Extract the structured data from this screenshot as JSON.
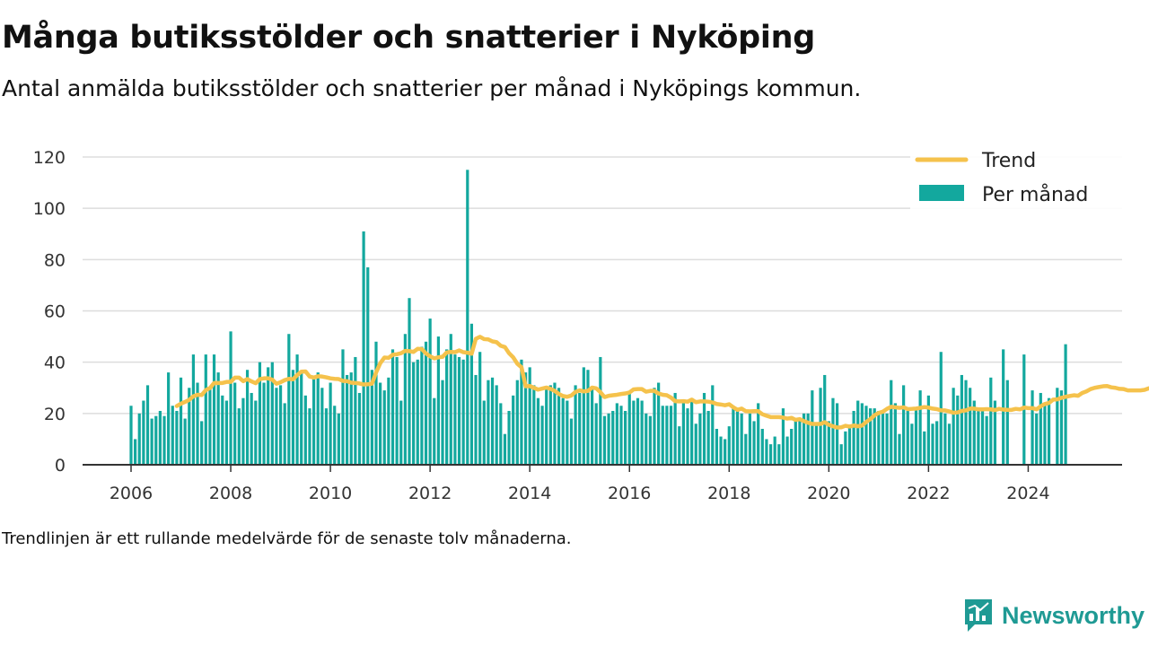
{
  "header": {
    "title": "Många butiksstölder och snatterier i Nyköping",
    "subtitle": "Antal anmälda butiksstölder och snatterier per månad i Nyköpings kommun."
  },
  "footer": {
    "note": "Trendlinjen är ett rullande medelvärde för de senaste tolv månaderna.",
    "brand": "Newsworthy"
  },
  "colors": {
    "bars": "#13a89e",
    "trend": "#f5c24c",
    "grid": "#dddddd",
    "axis": "#333333",
    "brand": "#1f9a94"
  },
  "chart_data": {
    "type": "bar",
    "title": "Många butiksstölder och snatterier i Nyköping",
    "subtitle": "Antal anmälda butiksstölder och snatterier per månad i Nyköpings kommun.",
    "xlabel": "",
    "ylabel": "",
    "ylim": [
      0,
      120
    ],
    "yticks": [
      0,
      20,
      40,
      60,
      80,
      100,
      120
    ],
    "xticks": [
      "2006",
      "2008",
      "2010",
      "2012",
      "2014",
      "2016",
      "2018",
      "2020",
      "2022",
      "2024"
    ],
    "grid": true,
    "legend_position": "top-right",
    "start_month": "2006-01",
    "series": [
      {
        "name": "Per månad",
        "kind": "bar",
        "values": [
          23,
          10,
          20,
          25,
          31,
          18,
          19,
          21,
          19,
          36,
          23,
          21,
          34,
          18,
          30,
          43,
          32,
          17,
          43,
          30,
          43,
          36,
          27,
          25,
          52,
          32,
          22,
          26,
          37,
          28,
          25,
          40,
          32,
          38,
          40,
          30,
          31,
          24,
          51,
          37,
          43,
          36,
          27,
          22,
          34,
          36,
          30,
          22,
          32,
          23,
          20,
          45,
          35,
          36,
          42,
          28,
          91,
          77,
          37,
          48,
          32,
          29,
          34,
          45,
          42,
          25,
          51,
          65,
          40,
          41,
          46,
          48,
          57,
          26,
          50,
          33,
          45,
          51,
          43,
          42,
          41,
          115,
          55,
          35,
          44,
          25,
          33,
          34,
          31,
          24,
          12,
          21,
          27,
          33,
          41,
          36,
          38,
          31,
          26,
          23,
          30,
          31,
          32,
          30,
          26,
          25,
          18,
          31,
          28,
          38,
          37,
          30,
          24,
          42,
          19,
          20,
          21,
          24,
          23,
          21,
          28,
          25,
          26,
          25,
          20,
          19,
          30,
          32,
          23,
          23,
          23,
          28,
          15,
          25,
          22,
          26,
          16,
          20,
          28,
          21,
          31,
          14,
          11,
          10,
          15,
          22,
          21,
          20,
          12,
          20,
          17,
          24,
          14,
          10,
          8,
          11,
          8,
          22,
          11,
          14,
          17,
          18,
          20,
          20,
          29,
          16,
          30,
          35,
          17,
          26,
          24,
          8,
          13,
          15,
          21,
          25,
          24,
          23,
          22,
          22,
          21,
          20,
          20,
          33,
          24,
          12,
          31,
          21,
          16,
          22,
          29,
          13,
          27,
          16,
          17,
          44,
          20,
          16,
          30,
          27,
          35,
          33,
          30,
          25,
          22,
          22,
          19,
          34,
          25,
          null,
          45,
          33,
          null,
          null,
          null,
          43,
          null,
          29,
          20,
          28,
          24,
          26,
          null,
          30,
          29,
          47
        ]
      },
      {
        "name": "Trend",
        "kind": "line",
        "values": [
          null,
          null,
          null,
          null,
          null,
          null,
          null,
          null,
          null,
          null,
          null,
          22.9,
          23.8,
          24.5,
          25.3,
          26.7,
          27.3,
          27.2,
          29.1,
          29.9,
          31.9,
          31.9,
          31.9,
          32.3,
          32.3,
          34.0,
          34.0,
          32.6,
          33.4,
          32.5,
          31.8,
          33.4,
          33.7,
          33.7,
          33.2,
          31.6,
          32.2,
          33.0,
          33.5,
          33.3,
          35.0,
          36.3,
          36.4,
          34.4,
          34.0,
          34.5,
          34.4,
          34.1,
          33.7,
          33.5,
          33.4,
          32.7,
          32.6,
          32.0,
          31.9,
          31.7,
          31.3,
          31.4,
          31.6,
          36.0,
          39.6,
          41.8,
          41.7,
          42.9,
          43.1,
          43.5,
          44.4,
          44.3,
          44.0,
          45.2,
          45.1,
          43.4,
          42.3,
          41.5,
          41.9,
          42.1,
          43.8,
          44.0,
          43.9,
          44.6,
          43.9,
          43.7,
          43.3,
          49.1,
          49.9,
          49.0,
          48.9,
          48.1,
          47.8,
          46.4,
          45.9,
          43.5,
          41.9,
          39.4,
          38.0,
          30.6,
          30.7,
          30.0,
          29.3,
          29.7,
          30.1,
          29.6,
          28.8,
          27.6,
          26.8,
          26.5,
          27.0,
          28.4,
          29.0,
          28.6,
          28.8,
          30.1,
          29.8,
          28.3,
          26.4,
          26.9,
          27.1,
          27.3,
          27.6,
          27.8,
          28.2,
          29.4,
          29.5,
          29.5,
          28.5,
          28.8,
          28.8,
          27.8,
          27.3,
          27.1,
          26.2,
          24.8,
          24.7,
          24.8,
          24.6,
          25.4,
          24.4,
          24.7,
          24.7,
          24.6,
          24.3,
          23.7,
          23.5,
          23.2,
          23.6,
          22.4,
          21.4,
          21.9,
          20.9,
          20.8,
          20.9,
          20.9,
          19.7,
          19.1,
          18.6,
          18.6,
          18.6,
          18.4,
          18.0,
          18.3,
          17.5,
          17.8,
          17.0,
          16.4,
          15.9,
          15.9,
          15.9,
          16.6,
          15.6,
          15.0,
          14.5,
          14.6,
          15.2,
          14.9,
          15.3,
          15.0,
          15.3,
          16.7,
          17.8,
          19.3,
          20.2,
          20.7,
          21.8,
          22.6,
          22.4,
          22.2,
          22.4,
          21.7,
          21.8,
          21.9,
          22.2,
          22.5,
          22.3,
          21.9,
          21.7,
          21.2,
          21.2,
          20.8,
          20.3,
          20.4,
          21.0,
          21.2,
          21.9,
          21.9,
          21.6,
          21.6,
          21.7,
          21.6,
          21.3,
          21.8,
          21.5,
          21.4,
          21.4,
          21.8,
          21.6,
          22.3,
          22.1,
          22.1,
          21.6,
          22.8,
          23.7,
          24.1,
          25.4,
          25.5,
          26.1,
          26.5,
          26.8,
          27.1,
          26.9,
          28.0,
          28.6,
          29.5,
          30.0,
          30.3,
          30.6,
          30.7,
          30.2,
          30.0,
          29.6,
          29.5,
          29.0,
          29.0,
          29.0,
          29.0,
          29.2,
          29.8,
          30.1,
          30.8,
          31.0,
          32.0
        ]
      }
    ]
  }
}
